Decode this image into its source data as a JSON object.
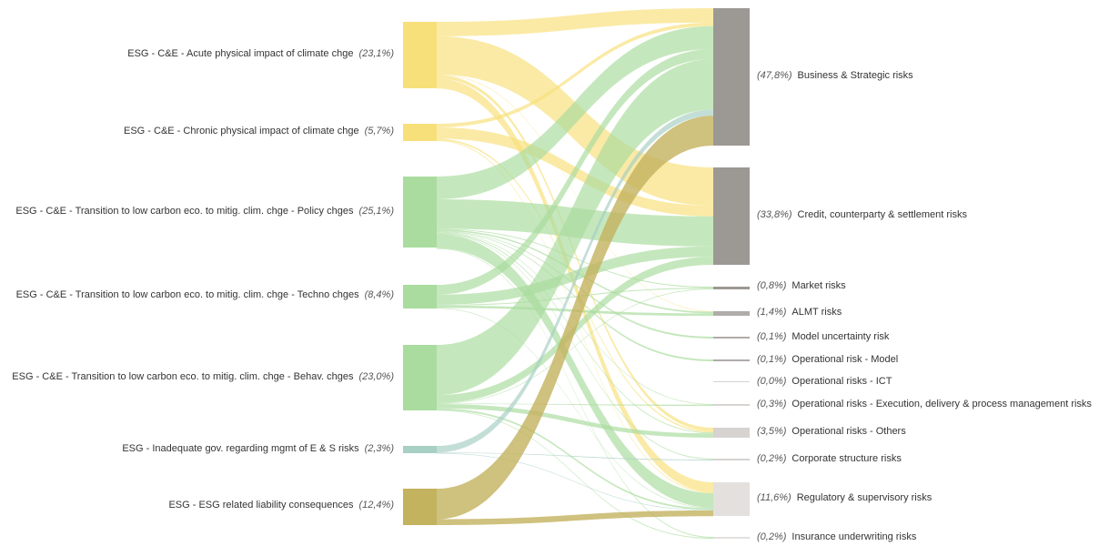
{
  "colors": {
    "physical": "#f7e07a",
    "transition": "#a9dc9e",
    "governance": "#a7cfc4",
    "liability": "#c3b25e",
    "target_major": "#9c9894",
    "target_mid": "#b0acaa",
    "target_light": "#d6d3d1",
    "target_pale": "#e3e0de"
  },
  "chart_data": {
    "type": "sankey",
    "sources": [
      {
        "id": "s1",
        "label": "ESG - C&E - Acute physical impact of climate chge",
        "pct": "(23,1%)",
        "value": 23.1,
        "color_key": "physical"
      },
      {
        "id": "s2",
        "label": "ESG - C&E - Chronic physical impact of climate chge",
        "pct": "(5,7%)",
        "value": 5.7,
        "color_key": "physical"
      },
      {
        "id": "s3",
        "label": "ESG - C&E - Transition to low carbon eco. to mitig. clim. chge - Policy chges",
        "pct": "(25,1%)",
        "value": 25.1,
        "color_key": "transition"
      },
      {
        "id": "s4",
        "label": "ESG - C&E - Transition to low carbon eco. to mitig. clim. chge - Techno chges",
        "pct": "(8,4%)",
        "value": 8.4,
        "color_key": "transition"
      },
      {
        "id": "s5",
        "label": "ESG - C&E - Transition to low carbon eco. to mitig. clim. chge - Behav. chges",
        "pct": "(23,0%)",
        "value": 23.0,
        "color_key": "transition"
      },
      {
        "id": "s6",
        "label": "ESG - Inadequate gov. regarding mgmt of E & S risks",
        "pct": "(2,3%)",
        "value": 2.3,
        "color_key": "governance"
      },
      {
        "id": "s7",
        "label": "ESG - ESG related liability consequences",
        "pct": "(12,4%)",
        "value": 12.4,
        "color_key": "liability"
      }
    ],
    "targets": [
      {
        "id": "t1",
        "label": "Business & Strategic risks",
        "pct": "(47,8%)",
        "value": 47.8,
        "color_key": "target_major"
      },
      {
        "id": "t2",
        "label": "Credit, counterparty & settlement risks",
        "pct": "(33,8%)",
        "value": 33.8,
        "color_key": "target_major"
      },
      {
        "id": "t3",
        "label": "Market risks",
        "pct": "(0,8%)",
        "value": 0.8,
        "color_key": "target_major"
      },
      {
        "id": "t4",
        "label": "ALMT risks",
        "pct": "(1,4%)",
        "value": 1.4,
        "color_key": "target_mid"
      },
      {
        "id": "t5",
        "label": "Model uncertainty risk",
        "pct": "(0,1%)",
        "value": 0.1,
        "color_key": "target_mid"
      },
      {
        "id": "t6",
        "label": "Operational risk - Model",
        "pct": "(0,1%)",
        "value": 0.1,
        "color_key": "target_mid"
      },
      {
        "id": "t7",
        "label": "Operational risks - ICT",
        "pct": "(0,0%)",
        "value": 0.0,
        "color_key": "target_light"
      },
      {
        "id": "t8",
        "label": "Operational risks - Execution, delivery & process management risks",
        "pct": "(0,3%)",
        "value": 0.3,
        "color_key": "target_light"
      },
      {
        "id": "t9",
        "label": "Operational risks - Others",
        "pct": "(3,5%)",
        "value": 3.5,
        "color_key": "target_light"
      },
      {
        "id": "t10",
        "label": "Corporate structure risks",
        "pct": "(0,2%)",
        "value": 0.2,
        "color_key": "target_light"
      },
      {
        "id": "t11",
        "label": "Regulatory & supervisory risks",
        "pct": "(11,6%)",
        "value": 11.6,
        "color_key": "target_pale"
      },
      {
        "id": "t12",
        "label": "Insurance underwriting risks",
        "pct": "(0,2%)",
        "value": 0.2,
        "color_key": "target_pale"
      }
    ],
    "links": [
      {
        "source": "s1",
        "target": "t1",
        "value": 5.0
      },
      {
        "source": "s1",
        "target": "t2",
        "value": 13.3
      },
      {
        "source": "s1",
        "target": "t9",
        "value": 1.2
      },
      {
        "source": "s1",
        "target": "t11",
        "value": 3.5
      },
      {
        "source": "s1",
        "target": "t4",
        "value": 0.1
      },
      {
        "source": "s2",
        "target": "t1",
        "value": 1.2
      },
      {
        "source": "s2",
        "target": "t2",
        "value": 3.7
      },
      {
        "source": "s2",
        "target": "t9",
        "value": 0.5
      },
      {
        "source": "s2",
        "target": "t11",
        "value": 0.3
      },
      {
        "source": "s3",
        "target": "t1",
        "value": 8.0
      },
      {
        "source": "s3",
        "target": "t2",
        "value": 10.4
      },
      {
        "source": "s3",
        "target": "t3",
        "value": 0.3
      },
      {
        "source": "s3",
        "target": "t4",
        "value": 0.5
      },
      {
        "source": "s3",
        "target": "t9",
        "value": 0.3
      },
      {
        "source": "s3",
        "target": "t10",
        "value": 0.1
      },
      {
        "source": "s3",
        "target": "t11",
        "value": 5.0
      },
      {
        "source": "s3",
        "target": "t12",
        "value": 0.1
      },
      {
        "source": "s3",
        "target": "t5",
        "value": 0.1
      },
      {
        "source": "s3",
        "target": "t8",
        "value": 0.1
      },
      {
        "source": "s3",
        "target": "t6",
        "value": 0.1
      },
      {
        "source": "s4",
        "target": "t1",
        "value": 3.5
      },
      {
        "source": "s4",
        "target": "t2",
        "value": 3.6
      },
      {
        "source": "s4",
        "target": "t4",
        "value": 0.8
      },
      {
        "source": "s4",
        "target": "t3",
        "value": 0.3
      },
      {
        "source": "s4",
        "target": "t11",
        "value": 0.2
      },
      {
        "source": "s5",
        "target": "t1",
        "value": 17.6
      },
      {
        "source": "s5",
        "target": "t2",
        "value": 2.8
      },
      {
        "source": "s5",
        "target": "t9",
        "value": 1.5
      },
      {
        "source": "s5",
        "target": "t11",
        "value": 0.6
      },
      {
        "source": "s5",
        "target": "t3",
        "value": 0.2
      },
      {
        "source": "s5",
        "target": "t8",
        "value": 0.2
      },
      {
        "source": "s5",
        "target": "t12",
        "value": 0.1
      },
      {
        "source": "s6",
        "target": "t1",
        "value": 2.1
      },
      {
        "source": "s6",
        "target": "t10",
        "value": 0.1
      },
      {
        "source": "s6",
        "target": "t11",
        "value": 0.1
      },
      {
        "source": "s7",
        "target": "t1",
        "value": 10.4
      },
      {
        "source": "s7",
        "target": "t11",
        "value": 2.0
      }
    ]
  }
}
